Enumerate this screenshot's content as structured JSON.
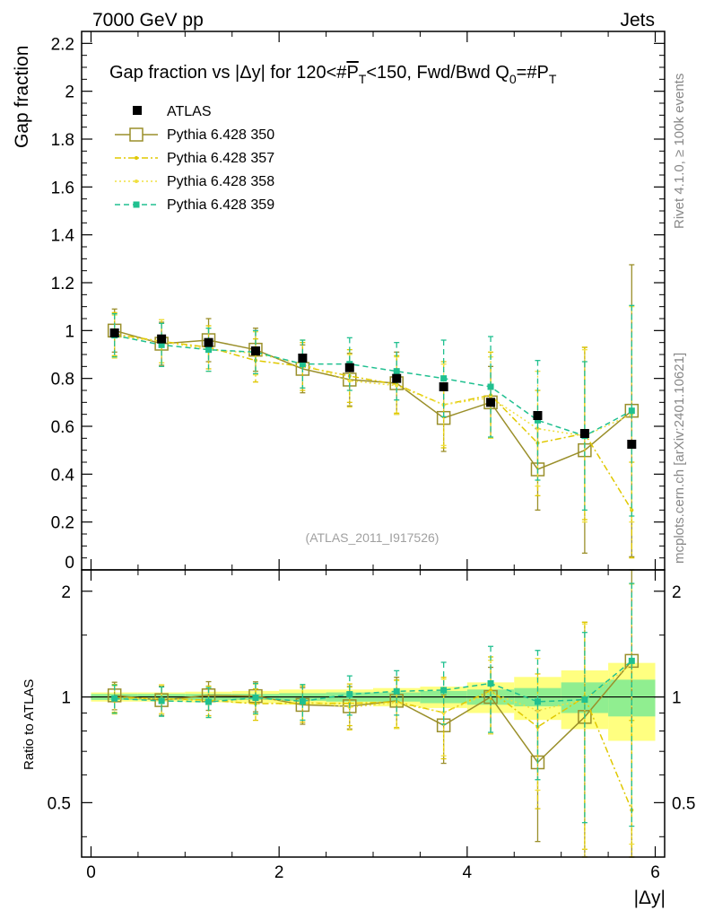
{
  "header": {
    "left": "7000 GeV pp",
    "right": "Jets"
  },
  "side_labels": {
    "rivet": "Rivet 4.1.0, ≥ 100k events",
    "mcplots": "mcplots.cern.ch [arXiv:2401.10621]"
  },
  "watermark": "(ATLAS_2011_I917526)",
  "chart_data": {
    "type": "scatter",
    "title": {
      "prefix": "Gap fraction vs |Δy| for 120<#",
      "pt": "P",
      "pt_sub": "T",
      "mid": "<150, Fwd/Bwd Q",
      "q_sub": "0",
      "eq": "=#",
      "pt2": "P",
      "pt2_sub": "T"
    },
    "xlabel": "|Δy|",
    "ylabel": "Gap fraction",
    "ratio_ylabel": "Ratio to ATLAS",
    "xlim": [
      -0.1,
      6.1
    ],
    "ylim": [
      0,
      2.25
    ],
    "ratio_ylim": [
      0.35,
      2.3
    ],
    "x_ticks": [
      "0",
      "2",
      "4",
      "6"
    ],
    "y_ticks": [
      "0",
      "0.2",
      "0.4",
      "0.6",
      "0.8",
      "1",
      "1.2",
      "1.4",
      "1.6",
      "1.8",
      "2",
      "2.2"
    ],
    "ratio_ticks": [
      "0.5",
      "1",
      "2"
    ],
    "x": [
      0.25,
      0.75,
      1.25,
      1.75,
      2.25,
      2.75,
      3.25,
      3.75,
      4.25,
      4.75,
      5.25,
      5.75
    ],
    "data": {
      "name": "ATLAS",
      "color": "#000000",
      "values": [
        0.99,
        0.965,
        0.95,
        0.915,
        0.885,
        0.845,
        0.8,
        0.765,
        0.7,
        0.645,
        0.57,
        0.525
      ],
      "band_inner_rel": [
        0.02,
        0.02,
        0.02,
        0.02,
        0.025,
        0.03,
        0.03,
        0.04,
        0.05,
        0.06,
        0.1,
        0.12
      ],
      "band_outer_rel": [
        0.03,
        0.03,
        0.035,
        0.04,
        0.05,
        0.05,
        0.06,
        0.07,
        0.1,
        0.14,
        0.19,
        0.25
      ],
      "band_inner_color": "#90ee90",
      "band_outer_color": "#ffff80"
    },
    "series": [
      {
        "name": "Pythia 6.428 350",
        "color": "#9a8f2a",
        "style": "solid",
        "marker": "open-square",
        "values": [
          1.0,
          0.945,
          0.96,
          0.92,
          0.84,
          0.795,
          0.78,
          0.635,
          0.7,
          0.42,
          0.5,
          0.665
        ],
        "errors": [
          0.09,
          0.09,
          0.09,
          0.09,
          0.1,
          0.11,
          0.13,
          0.14,
          0.15,
          0.17,
          0.43,
          0.61
        ]
      },
      {
        "name": "Pythia 6.428 357",
        "color": "#e0c800",
        "style": "dashdot",
        "marker": "dot",
        "values": [
          0.985,
          0.955,
          0.93,
          0.875,
          0.85,
          0.81,
          0.775,
          0.69,
          0.73,
          0.53,
          0.57,
          0.25
        ],
        "errors": [
          0.09,
          0.09,
          0.09,
          0.09,
          0.1,
          0.11,
          0.12,
          0.18,
          0.18,
          0.22,
          0.36,
          0.2
        ]
      },
      {
        "name": "Pythia 6.428 358",
        "color": "#f0e040",
        "style": "dotted",
        "marker": "dot",
        "values": [
          0.975,
          0.955,
          0.92,
          0.905,
          0.86,
          0.79,
          0.77,
          0.69,
          0.72,
          0.59,
          0.56,
          0.65
        ],
        "errors": [
          0.09,
          0.09,
          0.09,
          0.09,
          0.1,
          0.11,
          0.12,
          0.17,
          0.17,
          0.24,
          0.36,
          0.45
        ]
      },
      {
        "name": "Pythia 6.428 359",
        "color": "#20c090",
        "style": "dashed",
        "marker": "filled-square",
        "values": [
          0.98,
          0.94,
          0.92,
          0.91,
          0.86,
          0.86,
          0.83,
          0.8,
          0.765,
          0.625,
          0.56,
          0.665
        ],
        "errors": [
          0.09,
          0.09,
          0.09,
          0.09,
          0.1,
          0.11,
          0.12,
          0.16,
          0.21,
          0.25,
          0.31,
          0.44
        ]
      }
    ]
  }
}
